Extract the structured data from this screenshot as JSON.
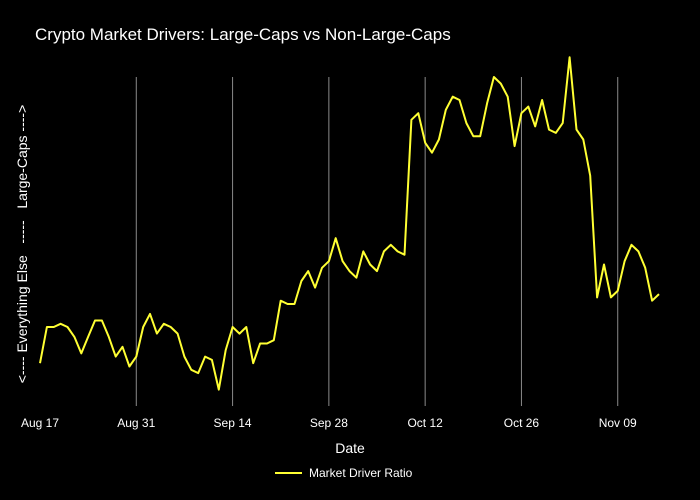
{
  "chart_data": {
    "type": "line",
    "title": "Crypto Market Drivers: Large-Caps vs Non-Large-Caps",
    "xlabel": "Date",
    "ylabel": "<---- Everything Else   -----   Large-Caps ---->",
    "x_tick_labels": [
      "Aug 17",
      "Aug 31",
      "Sep 14",
      "Sep 28",
      "Oct 12",
      "Oct 26",
      "Nov 09"
    ],
    "x_tick_days": [
      0,
      14,
      28,
      42,
      56,
      70,
      84
    ],
    "x_range": [
      0,
      90
    ],
    "ylim": [
      0,
      1
    ],
    "grid": "vertical",
    "legend_position": "bottom-center",
    "series": [
      {
        "name": "Market Driver Ratio",
        "color": "#ffff33",
        "x": [
          0,
          1,
          2,
          3,
          4,
          5,
          6,
          7,
          8,
          9,
          10,
          11,
          12,
          13,
          14,
          15,
          16,
          17,
          18,
          19,
          20,
          21,
          22,
          23,
          24,
          25,
          26,
          27,
          28,
          29,
          30,
          31,
          32,
          33,
          34,
          35,
          36,
          37,
          38,
          39,
          40,
          41,
          42,
          43,
          44,
          45,
          46,
          47,
          48,
          49,
          50,
          51,
          52,
          53,
          54,
          55,
          56,
          57,
          58,
          59,
          60,
          61,
          62,
          63,
          64,
          65,
          66,
          67,
          68,
          69,
          70,
          71,
          72,
          73,
          74,
          75,
          76,
          77,
          78,
          79,
          80,
          81,
          82,
          83,
          84,
          85,
          86,
          87,
          88,
          89,
          90
        ],
        "values": [
          0.13,
          0.24,
          0.24,
          0.25,
          0.24,
          0.21,
          0.16,
          0.21,
          0.26,
          0.26,
          0.21,
          0.15,
          0.18,
          0.12,
          0.15,
          0.24,
          0.28,
          0.22,
          0.25,
          0.24,
          0.22,
          0.15,
          0.11,
          0.1,
          0.15,
          0.14,
          0.05,
          0.17,
          0.24,
          0.22,
          0.24,
          0.13,
          0.19,
          0.19,
          0.2,
          0.32,
          0.31,
          0.31,
          0.38,
          0.41,
          0.36,
          0.42,
          0.44,
          0.51,
          0.44,
          0.41,
          0.39,
          0.47,
          0.43,
          0.41,
          0.47,
          0.49,
          0.47,
          0.46,
          0.87,
          0.89,
          0.8,
          0.77,
          0.81,
          0.9,
          0.94,
          0.93,
          0.86,
          0.82,
          0.82,
          0.92,
          1.0,
          0.98,
          0.94,
          0.79,
          0.89,
          0.91,
          0.85,
          0.93,
          0.84,
          0.83,
          0.86,
          1.06,
          0.84,
          0.81,
          0.7,
          0.33,
          0.43,
          0.33,
          0.35,
          0.44,
          0.49,
          0.47,
          0.42,
          0.32,
          0.34
        ]
      }
    ]
  }
}
